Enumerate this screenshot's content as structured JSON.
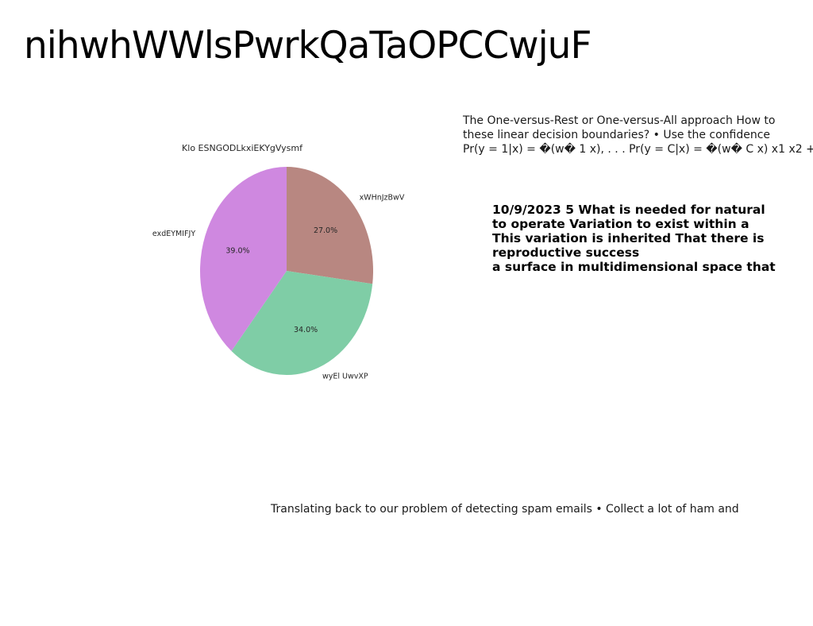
{
  "slide": {
    "title": "nihwhWWlsPwrkQaTaOPCCwjuF"
  },
  "chart_data": {
    "type": "pie",
    "title": "Klo ESNGODLkxiEKYgVysmf",
    "slices": [
      {
        "label": "xWHnJzBwV",
        "value": 27.0,
        "pct_label": "27.0%",
        "color": "#b88781"
      },
      {
        "label": "wyEl UwvXP",
        "value": 34.0,
        "pct_label": "34.0%",
        "color": "#7fcda6"
      },
      {
        "label": "exdEYMIFJY",
        "value": 39.0,
        "pct_label": "39.0%",
        "color": "#cf88e0"
      }
    ],
    "start_angle_deg": 90,
    "direction": "clockwise",
    "legend": "none"
  },
  "text_top": {
    "lines": [
      "The One-versus-Rest or One-versus-All approach How to",
      "these linear decision boundaries? • Use the confidence",
      "Pr(y = 1|x) = �(w� 1 x), . . . Pr(y = C|x) = �(w� C x) x1 x2 +"
    ]
  },
  "text_bold": {
    "lines": [
      "10/9/2023 5 What is needed for natural",
      "to operate Variation to exist within a",
      "This variation is inherited That there is",
      "reproductive success",
      "a surface in multidimensional space that"
    ]
  },
  "text_bottom": {
    "line": "Translating back to our problem of detecting spam emails • Collect a lot of ham and"
  }
}
